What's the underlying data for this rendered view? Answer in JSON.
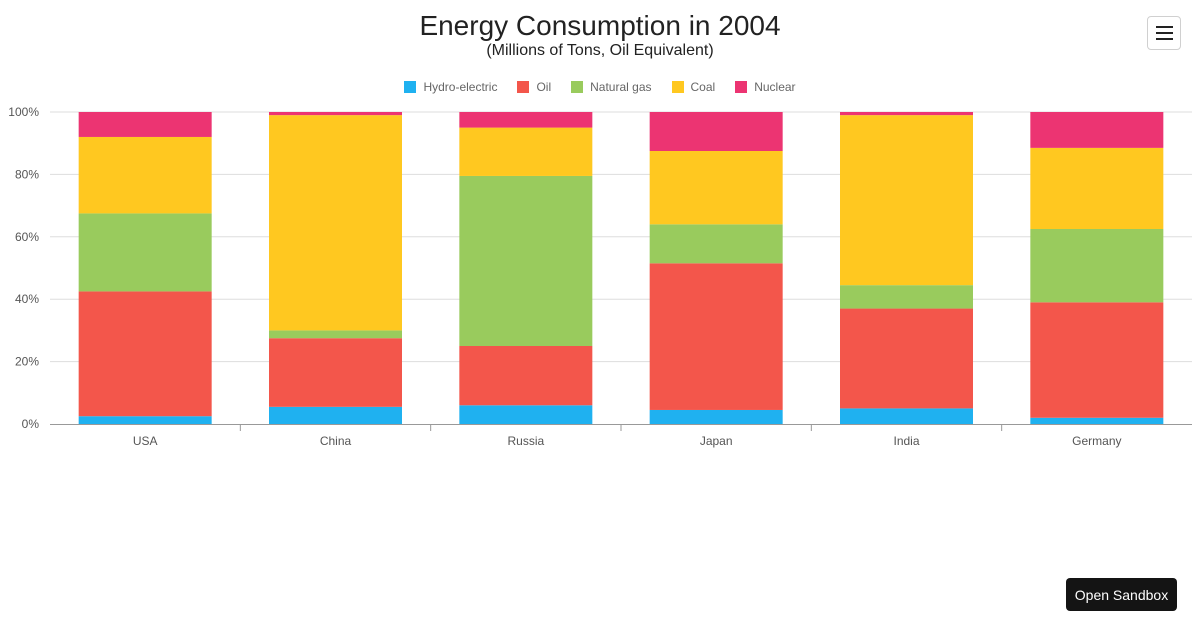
{
  "chart_data": {
    "type": "bar",
    "stacked": "percent",
    "title": "Energy Consumption in 2004",
    "subtitle": "(Millions of Tons, Oil Equivalent)",
    "categories": [
      "USA",
      "China",
      "Russia",
      "Japan",
      "India",
      "Germany"
    ],
    "series": [
      {
        "name": "Hydro-electric",
        "color": "#1fb1f0",
        "values": [
          2.5,
          5.5,
          6.0,
          4.5,
          5.0,
          2.0
        ]
      },
      {
        "name": "Oil",
        "color": "#f3564b",
        "values": [
          40.0,
          22.0,
          19.0,
          47.0,
          32.0,
          37.0
        ]
      },
      {
        "name": "Natural gas",
        "color": "#99cb5d",
        "values": [
          25.0,
          2.5,
          54.5,
          12.5,
          7.5,
          23.5
        ]
      },
      {
        "name": "Coal",
        "color": "#ffc820",
        "values": [
          24.5,
          69.0,
          15.5,
          23.5,
          54.5,
          26.0
        ]
      },
      {
        "name": "Nuclear",
        "color": "#ec3472",
        "values": [
          8.0,
          1.0,
          5.0,
          12.5,
          1.0,
          11.5
        ]
      }
    ],
    "yticks": [
      "0%",
      "20%",
      "40%",
      "60%",
      "80%",
      "100%"
    ],
    "ylim": [
      0,
      100
    ],
    "grid": true,
    "legend_position": "top"
  },
  "ui": {
    "open_sandbox_label": "Open Sandbox",
    "menu_icon": "hamburger-menu-icon"
  }
}
